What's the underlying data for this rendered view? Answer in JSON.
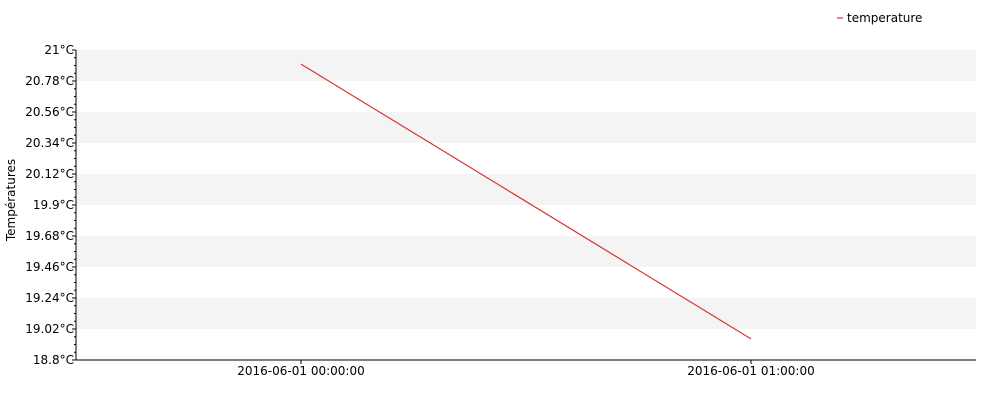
{
  "chart_data": {
    "type": "line",
    "ylabel": "Températures",
    "xlabel": "",
    "ylim": [
      18.8,
      21
    ],
    "y_ticks": [
      18.8,
      19.02,
      19.24,
      19.46,
      19.68,
      19.9,
      20.12,
      20.34,
      20.56,
      20.78,
      21
    ],
    "y_tick_labels": [
      "18.8°C",
      "19.02°C",
      "19.24°C",
      "19.46°C",
      "19.68°C",
      "19.9°C",
      "20.12°C",
      "20.34°C",
      "20.56°C",
      "20.78°C",
      "21°C"
    ],
    "x": [
      "2016-06-01 00:00:00",
      "2016-06-01 01:00:00"
    ],
    "x_tick_labels": [
      "2016-06-01 00:00:00",
      "2016-06-01 01:00:00"
    ],
    "series": [
      {
        "name": "temperature",
        "values": [
          20.9,
          18.95
        ],
        "color": "#dd3333"
      }
    ],
    "grid": "alternating horizontal bands",
    "legend_position": "top-right",
    "colors": {
      "band": "#f4f4f4",
      "axis": "#000000"
    }
  }
}
